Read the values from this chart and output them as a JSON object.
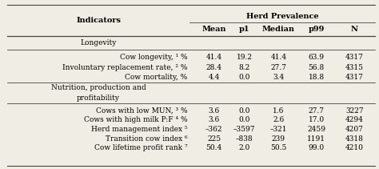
{
  "title": "Herd Prevalence",
  "rows": [
    {
      "label": "Cow longevity, ¹ %",
      "values": [
        "41.4",
        "19.2",
        "41.4",
        "63.9",
        "4317"
      ],
      "section": "longevity"
    },
    {
      "label": "Involuntary replacement rate, ² %",
      "values": [
        "28.4",
        "8.2",
        "27.7",
        "56.8",
        "4315"
      ],
      "section": "longevity"
    },
    {
      "label": "Cow mortality, %",
      "values": [
        "4.4",
        "0.0",
        "3.4",
        "18.8",
        "4317"
      ],
      "section": "longevity"
    },
    {
      "label": "Cows with low MUN, ³ %",
      "values": [
        "3.6",
        "0.0",
        "1.6",
        "27.7",
        "3227"
      ],
      "section": "nutrition"
    },
    {
      "label": "Cows with high milk P:F ⁴ %",
      "values": [
        "3.6",
        "0.0",
        "2.6",
        "17.0",
        "4294"
      ],
      "section": "nutrition"
    },
    {
      "label": "Herd management index ⁵",
      "values": [
        "–362",
        "–3597",
        "–321",
        "2459",
        "4207"
      ],
      "section": "nutrition"
    },
    {
      "label": "Transition cow index ⁶",
      "values": [
        "225",
        "–838",
        "239",
        "1191",
        "4318"
      ],
      "section": "nutrition"
    },
    {
      "label": "Cow lifetime profit rank ⁷",
      "values": [
        "50.4",
        "2.0",
        "50.5",
        "99.0",
        "4210"
      ],
      "section": "nutrition"
    }
  ],
  "bg_color": "#f0ede4",
  "line_color": "#444444",
  "font_size": 6.5,
  "header_font_size": 7.0,
  "section_font_size": 6.5
}
